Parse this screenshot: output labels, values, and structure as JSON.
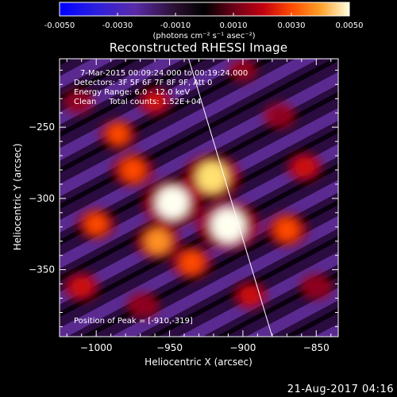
{
  "colors": {
    "background": "#000000",
    "foreground": "#ffffff",
    "limb_line": "#ffffff"
  },
  "colorbar": {
    "min": -0.005,
    "max": 0.005,
    "tick_values": [
      -0.005,
      -0.003,
      -0.001,
      0.001,
      0.003,
      0.005
    ],
    "tick_labels": [
      "-0.0050",
      "-0.0030",
      "-0.0010",
      "0.0010",
      "0.0030",
      "0.0050"
    ],
    "units_label": "(photons cm⁻² s⁻¹ asec⁻²)",
    "colormap": "rhessi-diverging: blue-purple-black-red-orange-yellow-white"
  },
  "chart_data": {
    "type": "heatmap",
    "title": "Reconstructed RHESSI Image",
    "xlabel": "Heliocentric X (arcsec)",
    "ylabel": "Heliocentric Y (arcsec)",
    "xlim": [
      -1025,
      -835
    ],
    "ylim": [
      -397,
      -202
    ],
    "x_ticks": [
      -1000,
      -950,
      -900,
      -850
    ],
    "x_tick_labels": [
      "−1000",
      "−950",
      "−900",
      "−850"
    ],
    "y_ticks": [
      -350,
      -300,
      -250
    ],
    "y_tick_labels": [
      "−350",
      "−300",
      "−250"
    ],
    "sources": [
      {
        "x": -910,
        "y": -319,
        "flux": 0.005
      },
      {
        "x": -948,
        "y": -303,
        "flux": 0.0047
      },
      {
        "x": -921,
        "y": -285,
        "flux": 0.0044
      },
      {
        "x": -958,
        "y": -330,
        "flux": 0.003
      },
      {
        "x": -975,
        "y": -280,
        "flux": 0.0026
      },
      {
        "x": -935,
        "y": -345,
        "flux": 0.0025
      },
      {
        "x": -1000,
        "y": -318,
        "flux": 0.0022
      },
      {
        "x": -985,
        "y": -255,
        "flux": 0.002
      },
      {
        "x": -960,
        "y": -232,
        "flux": 0.0016
      },
      {
        "x": -870,
        "y": -322,
        "flux": 0.0026
      },
      {
        "x": -858,
        "y": -278,
        "flux": 0.0018
      },
      {
        "x": -875,
        "y": -242,
        "flux": 0.0014
      },
      {
        "x": -1010,
        "y": -362,
        "flux": 0.0018
      },
      {
        "x": -968,
        "y": -375,
        "flux": 0.0014
      },
      {
        "x": -895,
        "y": -368,
        "flux": 0.0016
      },
      {
        "x": -850,
        "y": -362,
        "flux": 0.0014
      },
      {
        "x": -1012,
        "y": -232,
        "flux": 0.0012
      },
      {
        "x": -900,
        "y": -210,
        "flux": 0.001
      }
    ],
    "limb_line": [
      {
        "x": -937,
        "y": -202
      },
      {
        "x": -880,
        "y": -397
      }
    ],
    "peak_position": [
      -910,
      -319
    ],
    "annotations": [
      "7-Mar-2015 00:09:24.000 to 00:19:24.000",
      "Detectors: 3F 5F 6F 7F 8F 9F, Att 0",
      "Energy Range: 6.0 - 12.0 keV",
      "Clean     Total counts: 1.52E+04"
    ],
    "peak_label": "Position of Peak = [-910,-319]"
  },
  "timestamp": "21-Aug-2017 04:16"
}
